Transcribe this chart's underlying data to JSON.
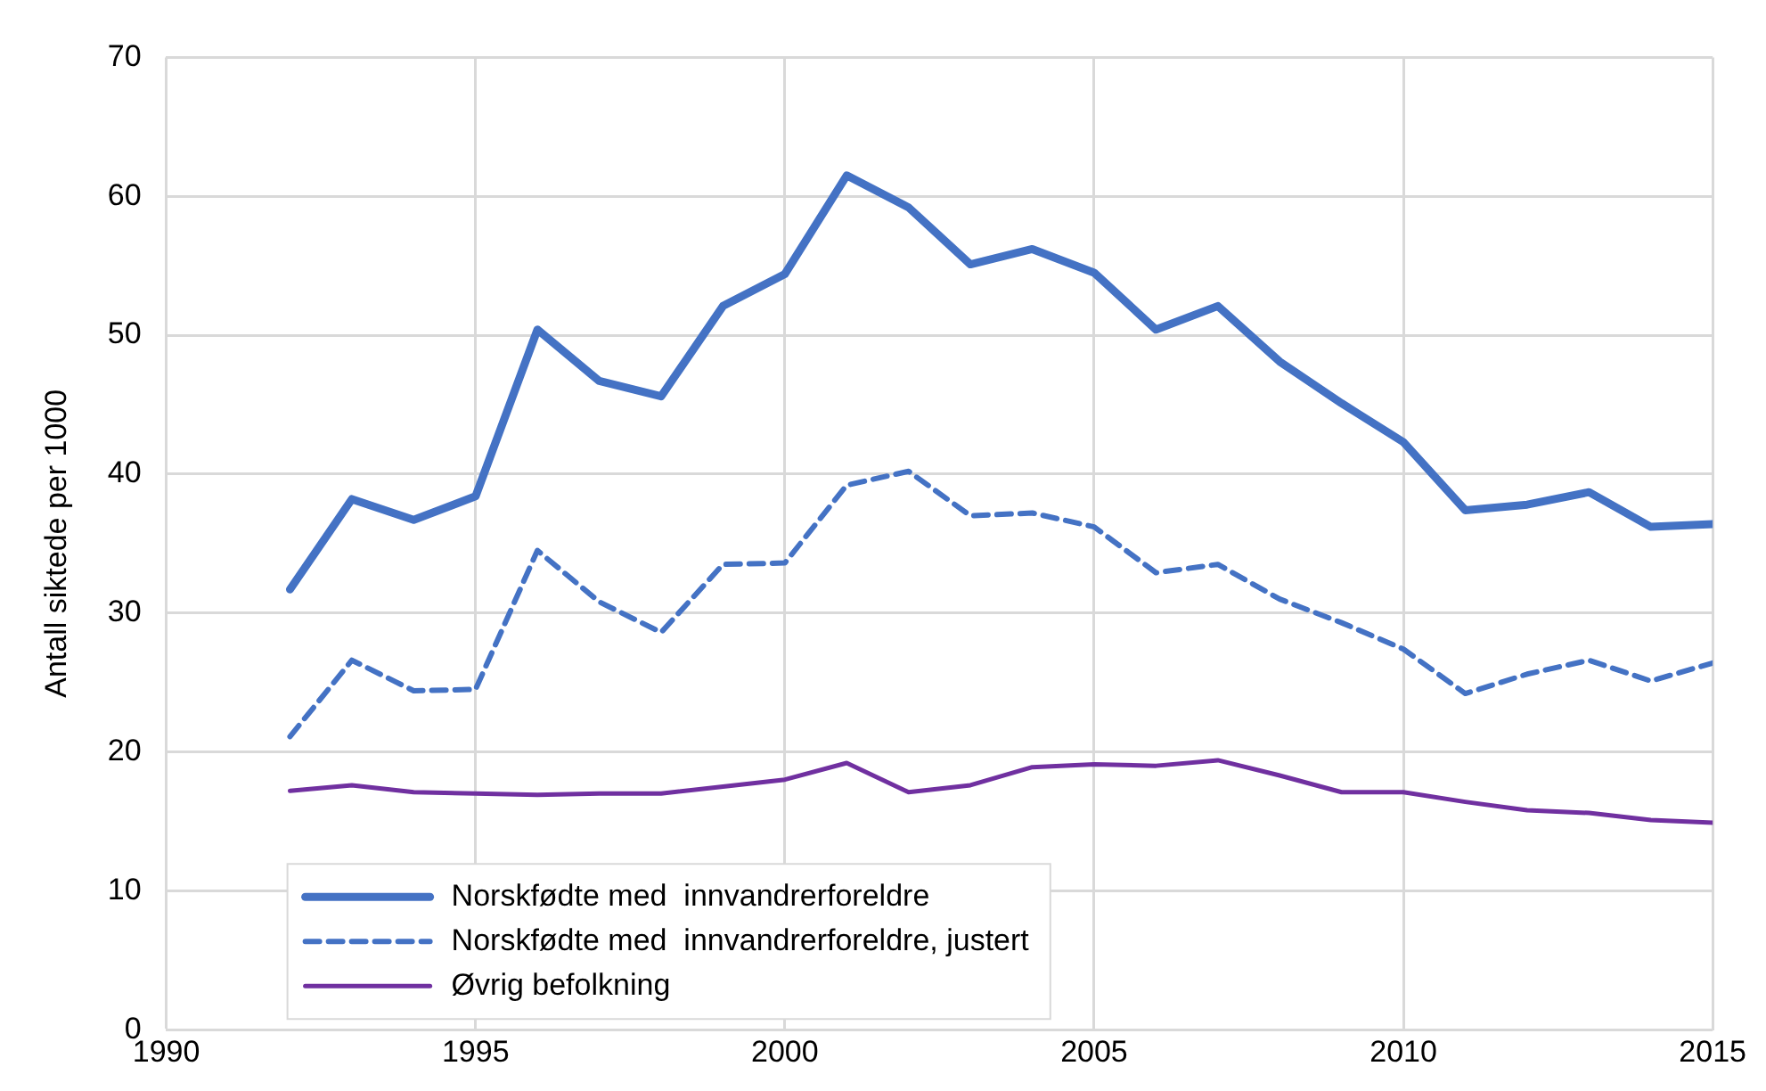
{
  "chart_data": {
    "type": "line",
    "ylabel": "Antall siktede per 1000",
    "x": [
      1992,
      1993,
      1994,
      1995,
      1996,
      1997,
      1998,
      1999,
      2000,
      2001,
      2002,
      2003,
      2004,
      2005,
      2006,
      2007,
      2008,
      2009,
      2010,
      2011,
      2012,
      2013,
      2014,
      2015
    ],
    "series": [
      {
        "name": "Norskfødte med  innvandrerforeldre",
        "color": "#4472c4",
        "line_style": "solid",
        "values": [
          31.7,
          38.2,
          36.7,
          38.4,
          50.4,
          46.7,
          45.6,
          52.1,
          54.4,
          61.5,
          59.2,
          55.1,
          56.2,
          54.5,
          50.4,
          52.1,
          48.1,
          45.1,
          42.3,
          37.4,
          37.8,
          38.7,
          36.2,
          36.4
        ]
      },
      {
        "name": "Norskfødte med  innvandrerforeldre, justert",
        "color": "#4472c4",
        "line_style": "dashed",
        "values": [
          21.1,
          26.6,
          24.4,
          24.5,
          34.5,
          30.8,
          28.6,
          33.5,
          33.6,
          39.2,
          40.2,
          37.0,
          37.2,
          36.2,
          32.9,
          33.5,
          31.0,
          29.3,
          27.4,
          24.2,
          25.6,
          26.6,
          25.1,
          26.4
        ]
      },
      {
        "name": "Øvrig befolkning",
        "color": "#7030a0",
        "line_style": "solid",
        "values": [
          17.2,
          17.6,
          17.1,
          17.0,
          16.9,
          17.0,
          17.0,
          17.5,
          18.0,
          19.2,
          17.1,
          17.6,
          18.9,
          19.1,
          19.0,
          19.4,
          18.3,
          17.1,
          17.1,
          16.4,
          15.8,
          15.6,
          15.1,
          14.9
        ]
      }
    ],
    "xlim": [
      1990,
      2015
    ],
    "xticks": [
      1990,
      1995,
      2000,
      2005,
      2010,
      2015
    ],
    "ylim": [
      0,
      70
    ],
    "yticks": [
      0,
      10,
      20,
      30,
      40,
      50,
      60,
      70
    ],
    "grid": true,
    "legend": "bottom left",
    "marker": "none"
  }
}
